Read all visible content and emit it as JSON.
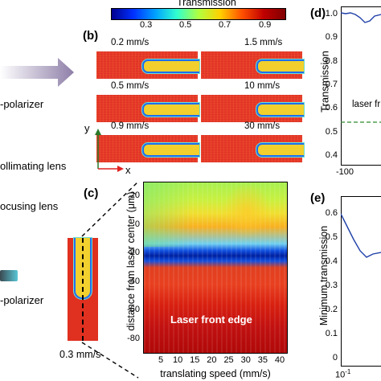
{
  "left_panel": {
    "arrow_color": "#8e7fa8",
    "items": [
      "-polarizer",
      "ollimating lens",
      "ocusing lens",
      "-polarizer"
    ]
  },
  "panel_b": {
    "letter": "(b)",
    "colorbar": {
      "title": "Transmission",
      "ticks": [
        "0.3",
        "0.5",
        "0.7",
        "0.9"
      ]
    },
    "axes": {
      "y": "y",
      "x": "x"
    },
    "frames": [
      {
        "speed": "0.2 mm/s",
        "channel_fraction": 0.55
      },
      {
        "speed": "1.5 mm/s",
        "channel_fraction": 0.45
      },
      {
        "speed": "0.5 mm/s",
        "channel_fraction": 0.55
      },
      {
        "speed": "10 mm/s",
        "channel_fraction": 0.45
      },
      {
        "speed": "0.9 mm/s",
        "channel_fraction": 0.55
      },
      {
        "speed": "30 mm/s",
        "channel_fraction": 0.45
      }
    ]
  },
  "panel_c": {
    "letter": "(c)",
    "inset_speed": "0.3 mm/s",
    "ylabel": "distance from laser center (μm)",
    "xlabel": "translating speed (mm/s)",
    "annotation": "Laser front edge",
    "yticks": [
      "20",
      "0",
      "-20",
      "-40",
      "-60",
      "-80"
    ],
    "xticks": [
      "5",
      "10",
      "15",
      "20",
      "25",
      "30",
      "35",
      "40"
    ]
  },
  "panel_d": {
    "letter": "(d)",
    "ylabel": "Transmission",
    "yticks": [
      "1.0",
      "0.9",
      "0.8",
      "0.7",
      "0.6",
      "0.5",
      "0.4"
    ],
    "xticks": [
      "-100"
    ],
    "annotation": "laser fr",
    "line_color": "#1f3fa8",
    "ref_color": "#2e8b2e"
  },
  "panel_e": {
    "letter": "(e)",
    "ylabel": "Minimum transmission",
    "yticks": [
      "0.6",
      "0.5",
      "0.4",
      "0.3",
      "0.2",
      "0.1",
      "0"
    ],
    "xtick_base": "10",
    "xtick_exp": "-1",
    "line_color": "#1f3fa8"
  }
}
